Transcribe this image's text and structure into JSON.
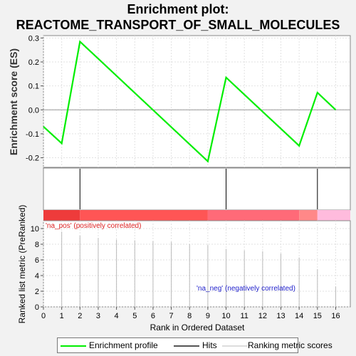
{
  "title": {
    "line1": "Enrichment plot:",
    "line2": "REACTOME_TRANSPORT_OF_SMALL_MOLECULES"
  },
  "colors": {
    "es_line": "#00ee00",
    "hit_line": "#000000",
    "ranked_bar": "#bbbbbb",
    "bar_segments": [
      "#ee3b3b",
      "#ff5555",
      "#ff6a78",
      "#ff8888",
      "#ffbbdd"
    ]
  },
  "legend": {
    "enrichment_profile": "Enrichment profile",
    "hits": "Hits",
    "ranking_metric": "Ranking metric scores"
  },
  "annotations": {
    "na_pos": "'na_pos' (positively correlated)",
    "na_neg": "'na_neg' (negatively correlated)"
  },
  "chart_data": [
    {
      "type": "line",
      "panel": "enrichment-score",
      "ylabel": "Enrichment score (ES)",
      "ylim": [
        -0.24,
        0.31
      ],
      "yticks": [
        -0.2,
        -0.1,
        0.0,
        0.1,
        0.2,
        0.3
      ],
      "ytick_labels": [
        "-0.2",
        "-0.1",
        "0.0",
        "0.1",
        "0.2",
        "0.3"
      ],
      "grid": true,
      "x": [
        0,
        1,
        2,
        9,
        10,
        14,
        15,
        16
      ],
      "y": [
        -0.07,
        -0.14,
        0.285,
        -0.215,
        0.135,
        -0.15,
        0.072,
        0.0
      ]
    },
    {
      "type": "bar",
      "panel": "hits",
      "hits_x": [
        2,
        10,
        15
      ],
      "segments": [
        {
          "from": 0,
          "to": 2
        },
        {
          "from": 2,
          "to": 9
        },
        {
          "from": 9,
          "to": 14
        },
        {
          "from": 14,
          "to": 15
        },
        {
          "from": 15,
          "to": 16.8
        }
      ]
    },
    {
      "type": "bar",
      "panel": "ranked-list",
      "xlabel": "Rank in Ordered Dataset",
      "ylabel": "Ranked list metric (PreRanked)",
      "xlim": [
        0,
        16.8
      ],
      "ylim": [
        0,
        11
      ],
      "xticks": [
        0,
        1,
        2,
        3,
        4,
        5,
        6,
        7,
        8,
        9,
        10,
        11,
        12,
        13,
        14,
        15,
        16
      ],
      "yticks": [
        0,
        2,
        4,
        6,
        8,
        10
      ],
      "grid": true,
      "x": [
        1,
        2,
        3,
        4,
        5,
        6,
        7,
        8,
        9,
        10,
        11,
        12,
        13,
        14,
        15,
        16
      ],
      "values": [
        9.6,
        9.1,
        8.8,
        8.6,
        8.5,
        8.4,
        8.3,
        8.0,
        7.9,
        7.4,
        7.2,
        7.1,
        6.8,
        6.3,
        4.8,
        2.6
      ]
    }
  ]
}
